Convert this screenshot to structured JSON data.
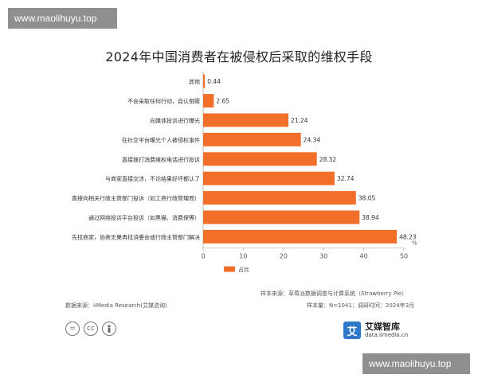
{
  "watermark_top": "www.maolihuyu.top",
  "watermark_bottom": "www.maolihuyu.top",
  "chart_data": {
    "type": "bar",
    "orientation": "horizontal",
    "title": "2024年中国消费者在被侵权后采取的维权手段",
    "categories": [
      "其他",
      "不会采取任何行动，自认倒霉",
      "向媒体投诉进行曝光",
      "在社交平台曝光个人被侵权事件",
      "直接拨打消费维权电话进行投诉",
      "与商家直接交涉，不论结果好坏都认了",
      "直接向相关行政主管部门投诉（如工商行政管理局）",
      "通过网络投诉平台投诉（如黑猫、消费保等）",
      "先找商家，协商无果再找消委会或行政主管部门解决"
    ],
    "series": [
      {
        "name": "占比",
        "values": [
          0.44,
          2.65,
          21.24,
          24.34,
          28.32,
          32.74,
          38.05,
          38.94,
          48.23
        ]
      }
    ],
    "value_labels": [
      "0.44",
      "2.65",
      "21.24",
      "24.34",
      "28.32",
      "32.74",
      "38.05",
      "38.94",
      "48.23"
    ],
    "xlim": [
      0,
      50
    ],
    "xticks": [
      "0",
      "10",
      "20",
      "30",
      "40",
      "50"
    ],
    "unit": "%",
    "color": "#f26f2a",
    "grid": false,
    "legend_position": "bottom-left"
  },
  "footer": {
    "sample_source": "样本来源：草莓派数据调查与计算系统（Strawberry Pie）",
    "data_source": "数据来源：iiMedia Research(艾媒咨询)",
    "sample_info": "样本量：N=1041；调研时间：2024年3月"
  },
  "brand": {
    "logo_char": "艾",
    "name": "艾媒智库",
    "url": "data.iimedia.cn"
  },
  "license_icons": [
    "=",
    "cc",
    "person"
  ]
}
